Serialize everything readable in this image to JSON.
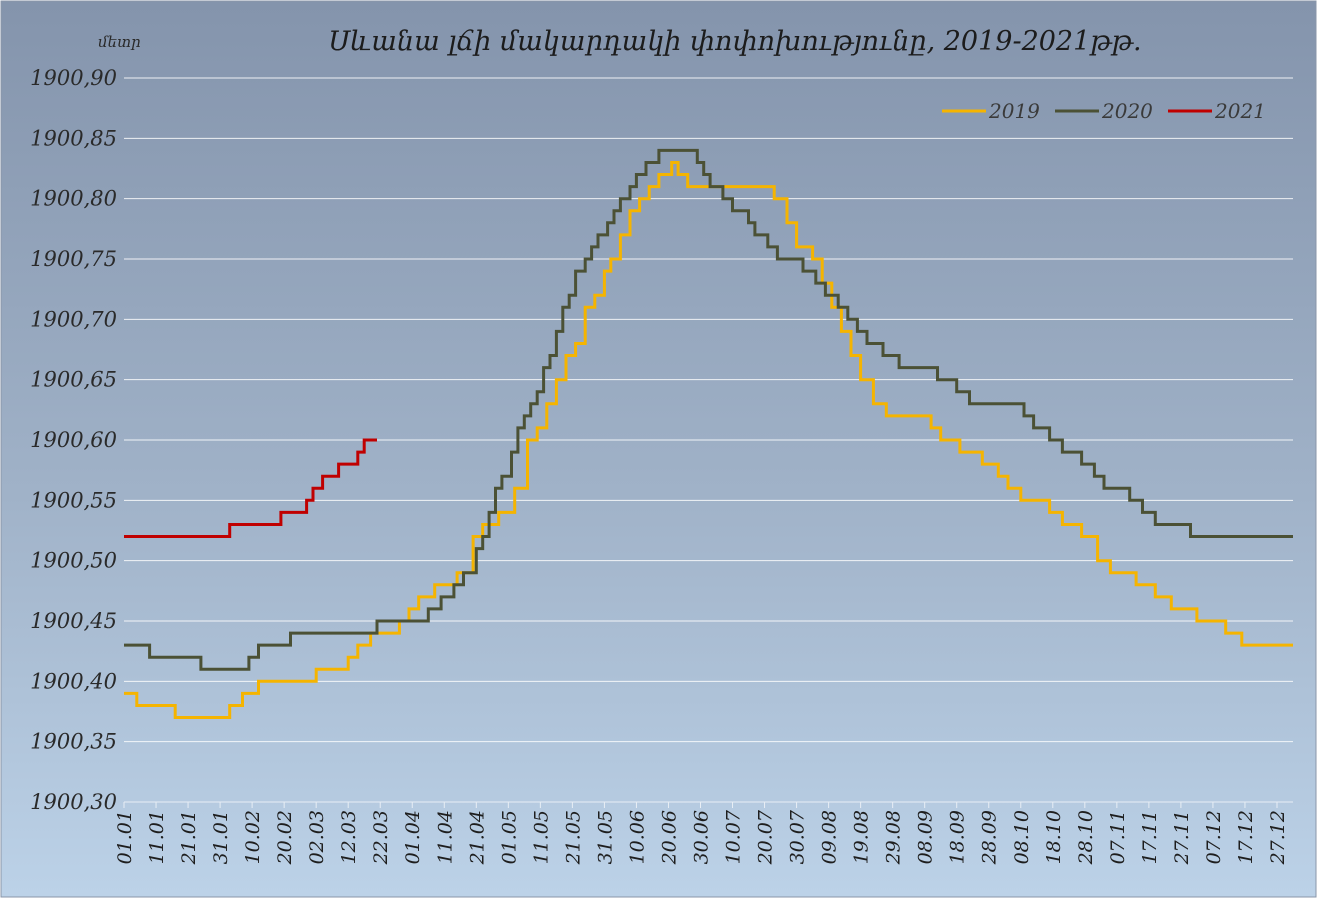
{
  "chart_data": {
    "type": "line",
    "title": "Սևանա լճի մակարդակի փոփոխությունը, 2019-2021թթ.",
    "ylabel": "մետր",
    "xlabel": "",
    "ylim": [
      1900.3,
      1900.9
    ],
    "ytick_values": [
      1900.3,
      1900.35,
      1900.4,
      1900.45,
      1900.5,
      1900.55,
      1900.6,
      1900.65,
      1900.7,
      1900.75,
      1900.8,
      1900.85,
      1900.9
    ],
    "ytick_labels": [
      "1900,30",
      "1900,35",
      "1900,40",
      "1900,45",
      "1900,50",
      "1900,55",
      "1900,60",
      "1900,65",
      "1900,70",
      "1900,75",
      "1900,80",
      "1900,85",
      "1900,90"
    ],
    "x_day_range": [
      1,
      366
    ],
    "xtick_days": [
      1,
      11,
      21,
      31,
      41,
      51,
      61,
      71,
      81,
      91,
      101,
      111,
      121,
      131,
      141,
      151,
      161,
      171,
      181,
      191,
      201,
      211,
      221,
      231,
      241,
      251,
      261,
      271,
      281,
      291,
      301,
      311,
      321,
      331,
      341,
      351,
      361
    ],
    "xtick_labels": [
      "01.01",
      "11.01",
      "21.01",
      "31.01",
      "10.02",
      "20.02",
      "02.03",
      "12.03",
      "22.03",
      "01.04",
      "11.04",
      "21.04",
      "01.05",
      "11.05",
      "21.05",
      "31.05",
      "10.06",
      "20.06",
      "30.06",
      "10.07",
      "20.07",
      "30.07",
      "09.08",
      "19.08",
      "29.08",
      "08.09",
      "18.09",
      "28.09",
      "08.10",
      "18.10",
      "28.10",
      "07.11",
      "17.11",
      "27.11",
      "07.12",
      "17.12",
      "27.12"
    ],
    "grid": true,
    "legend_position": "top-right",
    "series": [
      {
        "name": "2019",
        "color": "#f5b400",
        "points": [
          [
            1,
            1900.39
          ],
          [
            5,
            1900.38
          ],
          [
            17,
            1900.37
          ],
          [
            34,
            1900.38
          ],
          [
            38,
            1900.39
          ],
          [
            43,
            1900.4
          ],
          [
            61,
            1900.41
          ],
          [
            71,
            1900.42
          ],
          [
            74,
            1900.43
          ],
          [
            78,
            1900.44
          ],
          [
            83,
            1900.44
          ],
          [
            87,
            1900.45
          ],
          [
            90,
            1900.46
          ],
          [
            93,
            1900.47
          ],
          [
            98,
            1900.48
          ],
          [
            105,
            1900.49
          ],
          [
            110,
            1900.52
          ],
          [
            113,
            1900.53
          ],
          [
            118,
            1900.54
          ],
          [
            123,
            1900.56
          ],
          [
            127,
            1900.6
          ],
          [
            130,
            1900.61
          ],
          [
            133,
            1900.63
          ],
          [
            136,
            1900.65
          ],
          [
            139,
            1900.67
          ],
          [
            142,
            1900.68
          ],
          [
            145,
            1900.71
          ],
          [
            148,
            1900.72
          ],
          [
            151,
            1900.74
          ],
          [
            153,
            1900.75
          ],
          [
            156,
            1900.77
          ],
          [
            159,
            1900.79
          ],
          [
            162,
            1900.8
          ],
          [
            165,
            1900.81
          ],
          [
            168,
            1900.82
          ],
          [
            172,
            1900.83
          ],
          [
            174,
            1900.82
          ],
          [
            177,
            1900.81
          ],
          [
            201,
            1900.81
          ],
          [
            204,
            1900.8
          ],
          [
            208,
            1900.78
          ],
          [
            211,
            1900.76
          ],
          [
            216,
            1900.75
          ],
          [
            219,
            1900.73
          ],
          [
            222,
            1900.71
          ],
          [
            225,
            1900.69
          ],
          [
            228,
            1900.67
          ],
          [
            231,
            1900.65
          ],
          [
            235,
            1900.63
          ],
          [
            239,
            1900.62
          ],
          [
            253,
            1900.61
          ],
          [
            256,
            1900.6
          ],
          [
            262,
            1900.59
          ],
          [
            269,
            1900.58
          ],
          [
            274,
            1900.57
          ],
          [
            277,
            1900.56
          ],
          [
            281,
            1900.55
          ],
          [
            290,
            1900.54
          ],
          [
            294,
            1900.53
          ],
          [
            300,
            1900.52
          ],
          [
            305,
            1900.5
          ],
          [
            309,
            1900.49
          ],
          [
            317,
            1900.48
          ],
          [
            323,
            1900.47
          ],
          [
            328,
            1900.46
          ],
          [
            336,
            1900.45
          ],
          [
            345,
            1900.44
          ],
          [
            350,
            1900.43
          ],
          [
            366,
            1900.43
          ]
        ]
      },
      {
        "name": "2020",
        "color": "#4b5135",
        "points": [
          [
            1,
            1900.43
          ],
          [
            9,
            1900.42
          ],
          [
            25,
            1900.41
          ],
          [
            40,
            1900.42
          ],
          [
            43,
            1900.43
          ],
          [
            53,
            1900.44
          ],
          [
            80,
            1900.45
          ],
          [
            96,
            1900.46
          ],
          [
            100,
            1900.47
          ],
          [
            104,
            1900.48
          ],
          [
            107,
            1900.49
          ],
          [
            111,
            1900.51
          ],
          [
            113,
            1900.52
          ],
          [
            115,
            1900.54
          ],
          [
            117,
            1900.56
          ],
          [
            119,
            1900.57
          ],
          [
            122,
            1900.59
          ],
          [
            124,
            1900.61
          ],
          [
            126,
            1900.62
          ],
          [
            128,
            1900.63
          ],
          [
            130,
            1900.64
          ],
          [
            132,
            1900.66
          ],
          [
            134,
            1900.67
          ],
          [
            136,
            1900.69
          ],
          [
            138,
            1900.71
          ],
          [
            140,
            1900.72
          ],
          [
            142,
            1900.74
          ],
          [
            145,
            1900.75
          ],
          [
            147,
            1900.76
          ],
          [
            149,
            1900.77
          ],
          [
            152,
            1900.78
          ],
          [
            154,
            1900.79
          ],
          [
            156,
            1900.8
          ],
          [
            159,
            1900.81
          ],
          [
            161,
            1900.82
          ],
          [
            164,
            1900.83
          ],
          [
            168,
            1900.84
          ],
          [
            180,
            1900.83
          ],
          [
            182,
            1900.82
          ],
          [
            184,
            1900.81
          ],
          [
            188,
            1900.8
          ],
          [
            191,
            1900.79
          ],
          [
            196,
            1900.78
          ],
          [
            198,
            1900.77
          ],
          [
            202,
            1900.76
          ],
          [
            205,
            1900.75
          ],
          [
            213,
            1900.74
          ],
          [
            217,
            1900.73
          ],
          [
            220,
            1900.72
          ],
          [
            224,
            1900.71
          ],
          [
            227,
            1900.7
          ],
          [
            230,
            1900.69
          ],
          [
            233,
            1900.68
          ],
          [
            238,
            1900.67
          ],
          [
            243,
            1900.66
          ],
          [
            255,
            1900.65
          ],
          [
            261,
            1900.64
          ],
          [
            265,
            1900.63
          ],
          [
            282,
            1900.62
          ],
          [
            285,
            1900.61
          ],
          [
            290,
            1900.6
          ],
          [
            294,
            1900.59
          ],
          [
            300,
            1900.58
          ],
          [
            304,
            1900.57
          ],
          [
            307,
            1900.56
          ],
          [
            315,
            1900.55
          ],
          [
            319,
            1900.54
          ],
          [
            323,
            1900.53
          ],
          [
            334,
            1900.52
          ],
          [
            366,
            1900.52
          ]
        ]
      },
      {
        "name": "2021",
        "color": "#c00000",
        "points": [
          [
            1,
            1900.52
          ],
          [
            34,
            1900.53
          ],
          [
            50,
            1900.54
          ],
          [
            58,
            1900.55
          ],
          [
            60,
            1900.56
          ],
          [
            63,
            1900.57
          ],
          [
            68,
            1900.58
          ],
          [
            74,
            1900.59
          ],
          [
            76,
            1900.6
          ],
          [
            80,
            1900.6
          ]
        ]
      }
    ]
  }
}
